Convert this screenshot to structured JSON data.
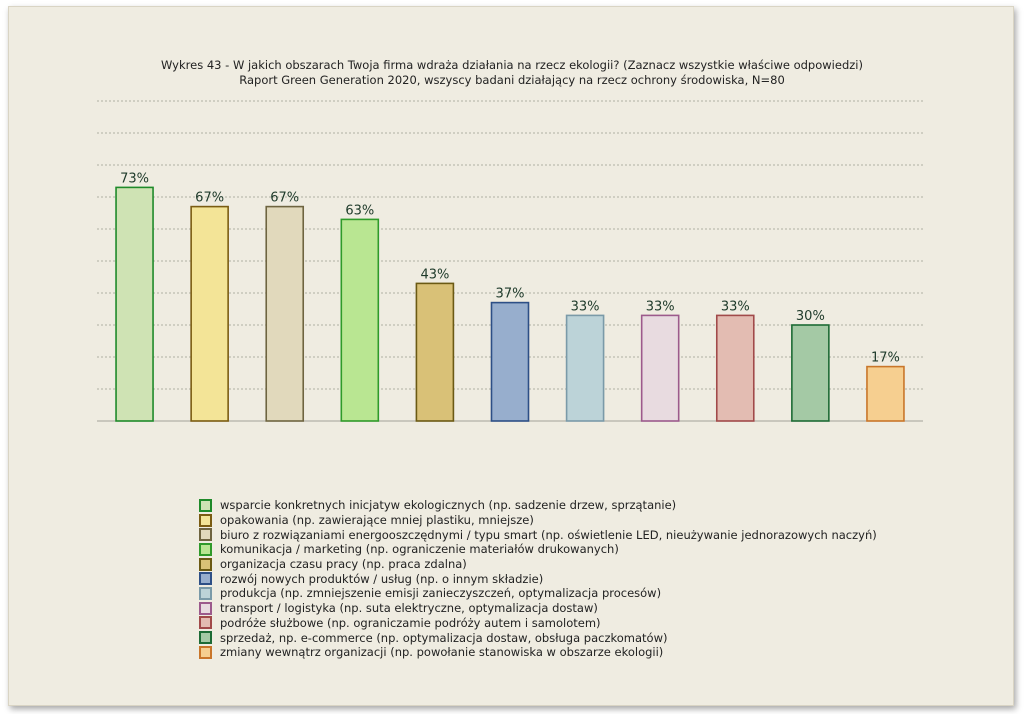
{
  "chart_data": {
    "type": "bar",
    "title": "Wykres 43 - W jakich obszarach Twoja firma wdraża działania na rzecz ekologii? (Zaznacz wszystkie właściwe odpowiedzi)",
    "subtitle": "Raport Green Generation 2020, wszyscy badani działający na rzecz ochrony środowiska, N=80",
    "xlabel": "",
    "ylabel": "",
    "ylim": [
      0,
      100
    ],
    "grid": true,
    "legend_position": "bottom",
    "categories": [
      "wsparcie konkretnych inicjatyw ekologicznych (np. sadzenie drzew, sprzątanie)",
      "opakowania (np. zawierające mniej plastiku, mniejsze)",
      "biuro z rozwiązaniami energooszczędnymi / typu smart (np. oświetlenie LED, nieużywanie jednorazowych naczyń)",
      "komunikacja / marketing (np. ograniczenie materiałów drukowanych)",
      "organizacja czasu pracy (np. praca zdalna)",
      "rozwój nowych produktów / usług (np. o innym składzie)",
      "produkcja (np. zmniejszenie emisji zanieczyszczeń, optymalizacja procesów)",
      "transport / logistyka (np. suta elektryczne, optymalizacja dostaw)",
      "podróże służbowe (np. ograniczamie podróży autem i samolotem)",
      "sprzedaż, np. e-commerce (np. optymalizacja dostaw, obsługa paczkomatów)",
      "zmiany wewnątrz organizacji (np. powołanie stanowiska w obszarze ekologii)"
    ],
    "values": [
      73,
      67,
      67,
      63,
      43,
      37,
      33,
      33,
      33,
      30,
      17
    ],
    "labels": [
      "73%",
      "67%",
      "67%",
      "63%",
      "43%",
      "37%",
      "33%",
      "33%",
      "33%",
      "30%",
      "17%"
    ],
    "fill_colors": [
      "#cfe3b4",
      "#f3e497",
      "#e1d9bc",
      "#b9e692",
      "#d9c177",
      "#97aecd",
      "#bcd3d8",
      "#e8dbe0",
      "#e3bcb2",
      "#a4c9a5",
      "#f6cf90"
    ],
    "border_colors": [
      "#1f8a2a",
      "#7a5c12",
      "#6e6440",
      "#2f9a2a",
      "#6b5a14",
      "#2d4f86",
      "#7a9aa8",
      "#9c5a8c",
      "#a14a4a",
      "#1d6b35",
      "#c9762a"
    ]
  }
}
